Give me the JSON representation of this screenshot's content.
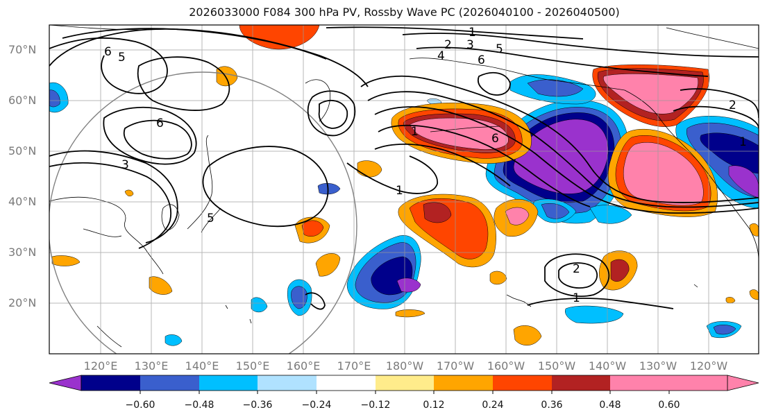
{
  "title": "2026033000 F084 300 hPa PV, Rossby Wave PC (2026040100 - 2026040500)",
  "latitude_labels": [
    "70°N",
    "60°N",
    "50°N",
    "40°N",
    "30°N",
    "20°N"
  ],
  "longitude_labels": [
    "120°E",
    "130°E",
    "140°E",
    "150°E",
    "160°E",
    "170°E",
    "180°W",
    "170°W",
    "160°W",
    "150°W",
    "140°W",
    "130°W",
    "120°W"
  ],
  "contour_labels": [
    "6",
    "5",
    "2",
    "3",
    "1",
    "4",
    "6",
    "5",
    "6",
    "3",
    "5",
    "1",
    "1",
    "6",
    "2",
    "1",
    "2",
    "1"
  ],
  "colorbar": {
    "tick_labels": [
      "−0.60",
      "−0.48",
      "−0.36",
      "−0.24",
      "−0.12",
      "0.12",
      "0.24",
      "0.36",
      "0.48",
      "0.60"
    ],
    "colors": [
      "#9a32cd",
      "#00008b",
      "#3a5fcd",
      "#00bfff",
      "#b0e2ff",
      "#ffffff",
      "#ffec8b",
      "#ffa500",
      "#ff4500",
      "#b22222",
      "#ff82ab"
    ]
  }
}
